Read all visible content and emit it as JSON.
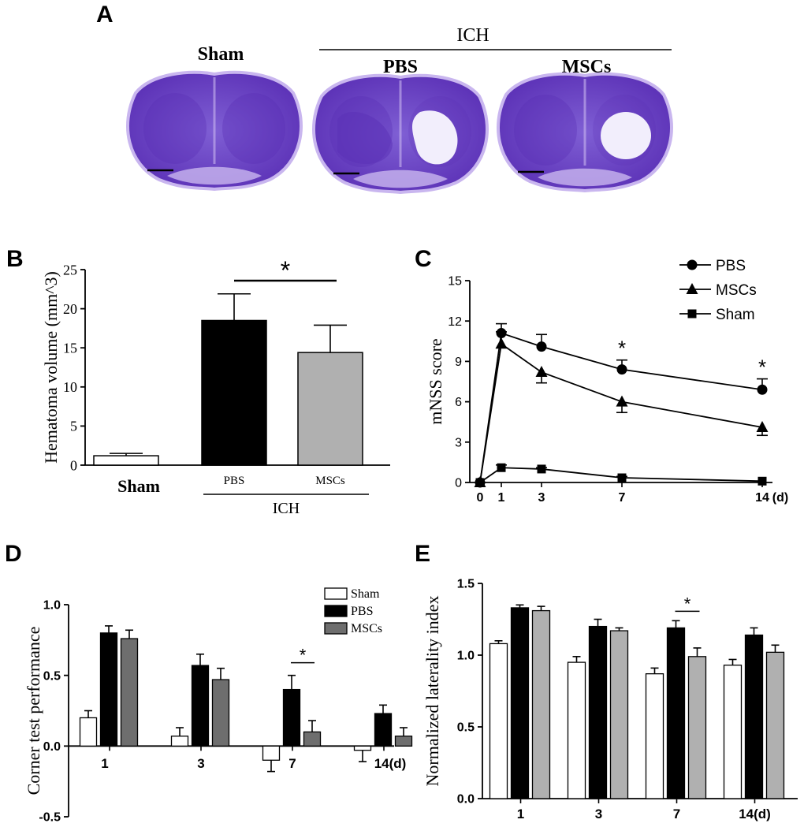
{
  "colors": {
    "black": "#000000",
    "gray": "#b0b0b0",
    "dark_gray": "#6e6e6e",
    "white": "#ffffff",
    "stain": "#7f5fd4",
    "stain_dark": "#5a2fb5",
    "stain_light": "#c9b6ef",
    "lesion": "#f2eefc"
  },
  "panel_a": {
    "letter": "A",
    "group_label": "ICH",
    "labels": [
      "Sham",
      "PBS",
      "MSCs"
    ]
  },
  "chart_data": [
    {
      "panel": "B",
      "type": "bar",
      "categories": [
        "Sham",
        "PBS",
        "MSCs"
      ],
      "values": [
        1.2,
        18.5,
        14.4
      ],
      "errors": [
        0.3,
        3.4,
        3.5
      ],
      "colors": [
        "#ffffff",
        "#000000",
        "#b0b0b0"
      ],
      "ylabel": "Hematoma volume (mm^3)",
      "ylim": [
        0,
        25
      ],
      "yticks": [
        "0",
        "5",
        "10",
        "15",
        "20",
        "25"
      ],
      "group_label": "ICH",
      "significance": "*"
    },
    {
      "panel": "C",
      "type": "line",
      "x": [
        0,
        1,
        3,
        7,
        14
      ],
      "xticks": [
        "0",
        "1",
        "3",
        "7",
        "14"
      ],
      "xunit": "(d)",
      "ylabel": "mNSS score",
      "ylim": [
        0,
        15
      ],
      "yticks": [
        "0",
        "3",
        "6",
        "9",
        "12",
        "15"
      ],
      "series": [
        {
          "name": "PBS",
          "marker": "circle",
          "values": [
            0,
            11.1,
            10.1,
            8.4,
            6.9
          ],
          "errors": [
            0,
            0.7,
            0.9,
            0.7,
            0.8
          ]
        },
        {
          "name": "MSCs",
          "marker": "triangle",
          "values": [
            0,
            10.3,
            8.2,
            6.0,
            4.1
          ],
          "errors": [
            0,
            0.9,
            0.8,
            0.8,
            0.6
          ]
        },
        {
          "name": "Sham",
          "marker": "square",
          "values": [
            0,
            1.1,
            1.0,
            0.35,
            0.1
          ],
          "errors": [
            0,
            0.2,
            0.1,
            0.1,
            0.05
          ]
        }
      ],
      "significance": [
        "",
        "",
        "",
        "*",
        "*"
      ]
    },
    {
      "panel": "D",
      "type": "bar",
      "categories": [
        "1",
        "3",
        "7",
        "14(d)"
      ],
      "ylabel": "Corner test performance",
      "ylim": [
        -0.5,
        1.0
      ],
      "yticks": [
        "-0.5",
        "0.0",
        "0.5",
        "1.0"
      ],
      "series": [
        {
          "name": "Sham",
          "color": "#ffffff",
          "values": [
            0.2,
            0.07,
            -0.1,
            -0.03
          ],
          "errors": [
            0.05,
            0.06,
            0.08,
            0.08
          ]
        },
        {
          "name": "PBS",
          "color": "#000000",
          "values": [
            0.8,
            0.57,
            0.4,
            0.23
          ],
          "errors": [
            0.05,
            0.08,
            0.1,
            0.06
          ]
        },
        {
          "name": "MSCs",
          "color": "#6e6e6e",
          "values": [
            0.76,
            0.47,
            0.1,
            0.07
          ],
          "errors": [
            0.06,
            0.08,
            0.08,
            0.06
          ]
        }
      ],
      "significance": [
        "",
        "",
        "*",
        ""
      ]
    },
    {
      "panel": "E",
      "type": "bar",
      "categories": [
        "1",
        "3",
        "7",
        "14(d)"
      ],
      "ylabel": "Normalized laterality index",
      "ylim": [
        0,
        1.5
      ],
      "yticks": [
        "0.0",
        "0.5",
        "1.0",
        "1.5"
      ],
      "series": [
        {
          "name": "Sham",
          "color": "#ffffff",
          "values": [
            1.08,
            0.95,
            0.87,
            0.93
          ],
          "errors": [
            0.02,
            0.04,
            0.04,
            0.04
          ]
        },
        {
          "name": "PBS",
          "color": "#000000",
          "values": [
            1.33,
            1.2,
            1.19,
            1.14
          ],
          "errors": [
            0.02,
            0.05,
            0.05,
            0.05
          ]
        },
        {
          "name": "MSCs",
          "color": "#b0b0b0",
          "values": [
            1.31,
            1.17,
            0.99,
            1.02
          ],
          "errors": [
            0.03,
            0.02,
            0.06,
            0.05
          ]
        }
      ],
      "significance": [
        "",
        "",
        "*",
        ""
      ]
    }
  ]
}
